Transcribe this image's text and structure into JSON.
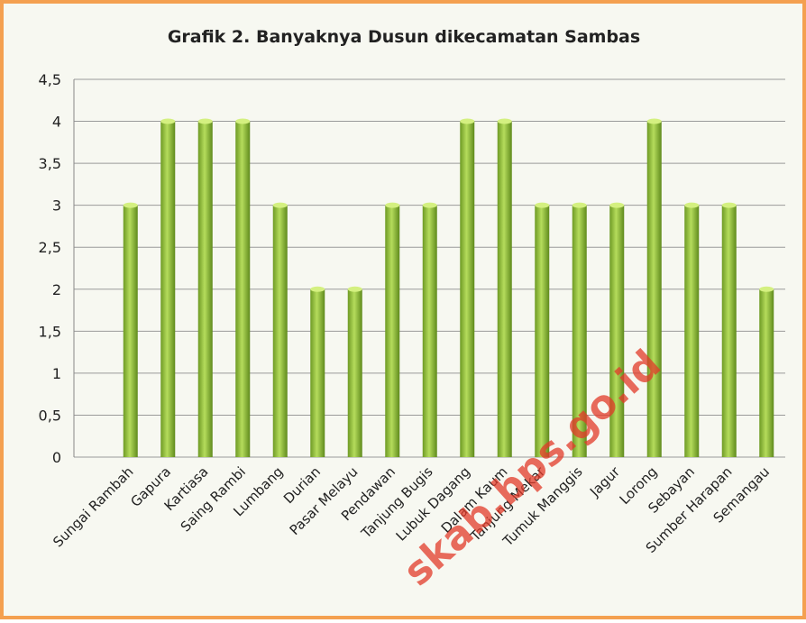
{
  "chart_data": {
    "type": "bar",
    "title": "Grafik 2.  Banyaknya Dusun dikecamatan Sambas",
    "categories": [
      "Sungai Rambah",
      "Gapura",
      "Kartiasa",
      "Saing Rambi",
      "Lumbang",
      "Durian",
      "Pasar Melayu",
      "Pendawan",
      "Tanjung Bugis",
      "Lubuk Dagang",
      "Dalam Kaum",
      "Tanjung Mekar",
      "Tumuk Manggis",
      "Jagur",
      "Lorong",
      "Sebayan",
      "Sumber Harapan",
      "Semangau"
    ],
    "values": [
      3,
      4,
      4,
      4,
      3,
      2,
      2,
      3,
      3,
      4,
      4,
      3,
      3,
      3,
      4,
      3,
      3,
      2
    ],
    "color": "#8db83a",
    "ylim": [
      0,
      4.5
    ],
    "yticks": [
      0,
      {
        "value": 0.5,
        "label": "0,5"
      },
      1,
      {
        "value": 1.5,
        "label": "1,5"
      },
      2,
      {
        "value": 2.5,
        "label": "2,5"
      },
      3,
      {
        "value": 3.5,
        "label": "3,5"
      },
      4,
      {
        "value": 4.5,
        "label": "4,5"
      }
    ],
    "grid": true,
    "watermark": "skab.bps.go.id"
  }
}
